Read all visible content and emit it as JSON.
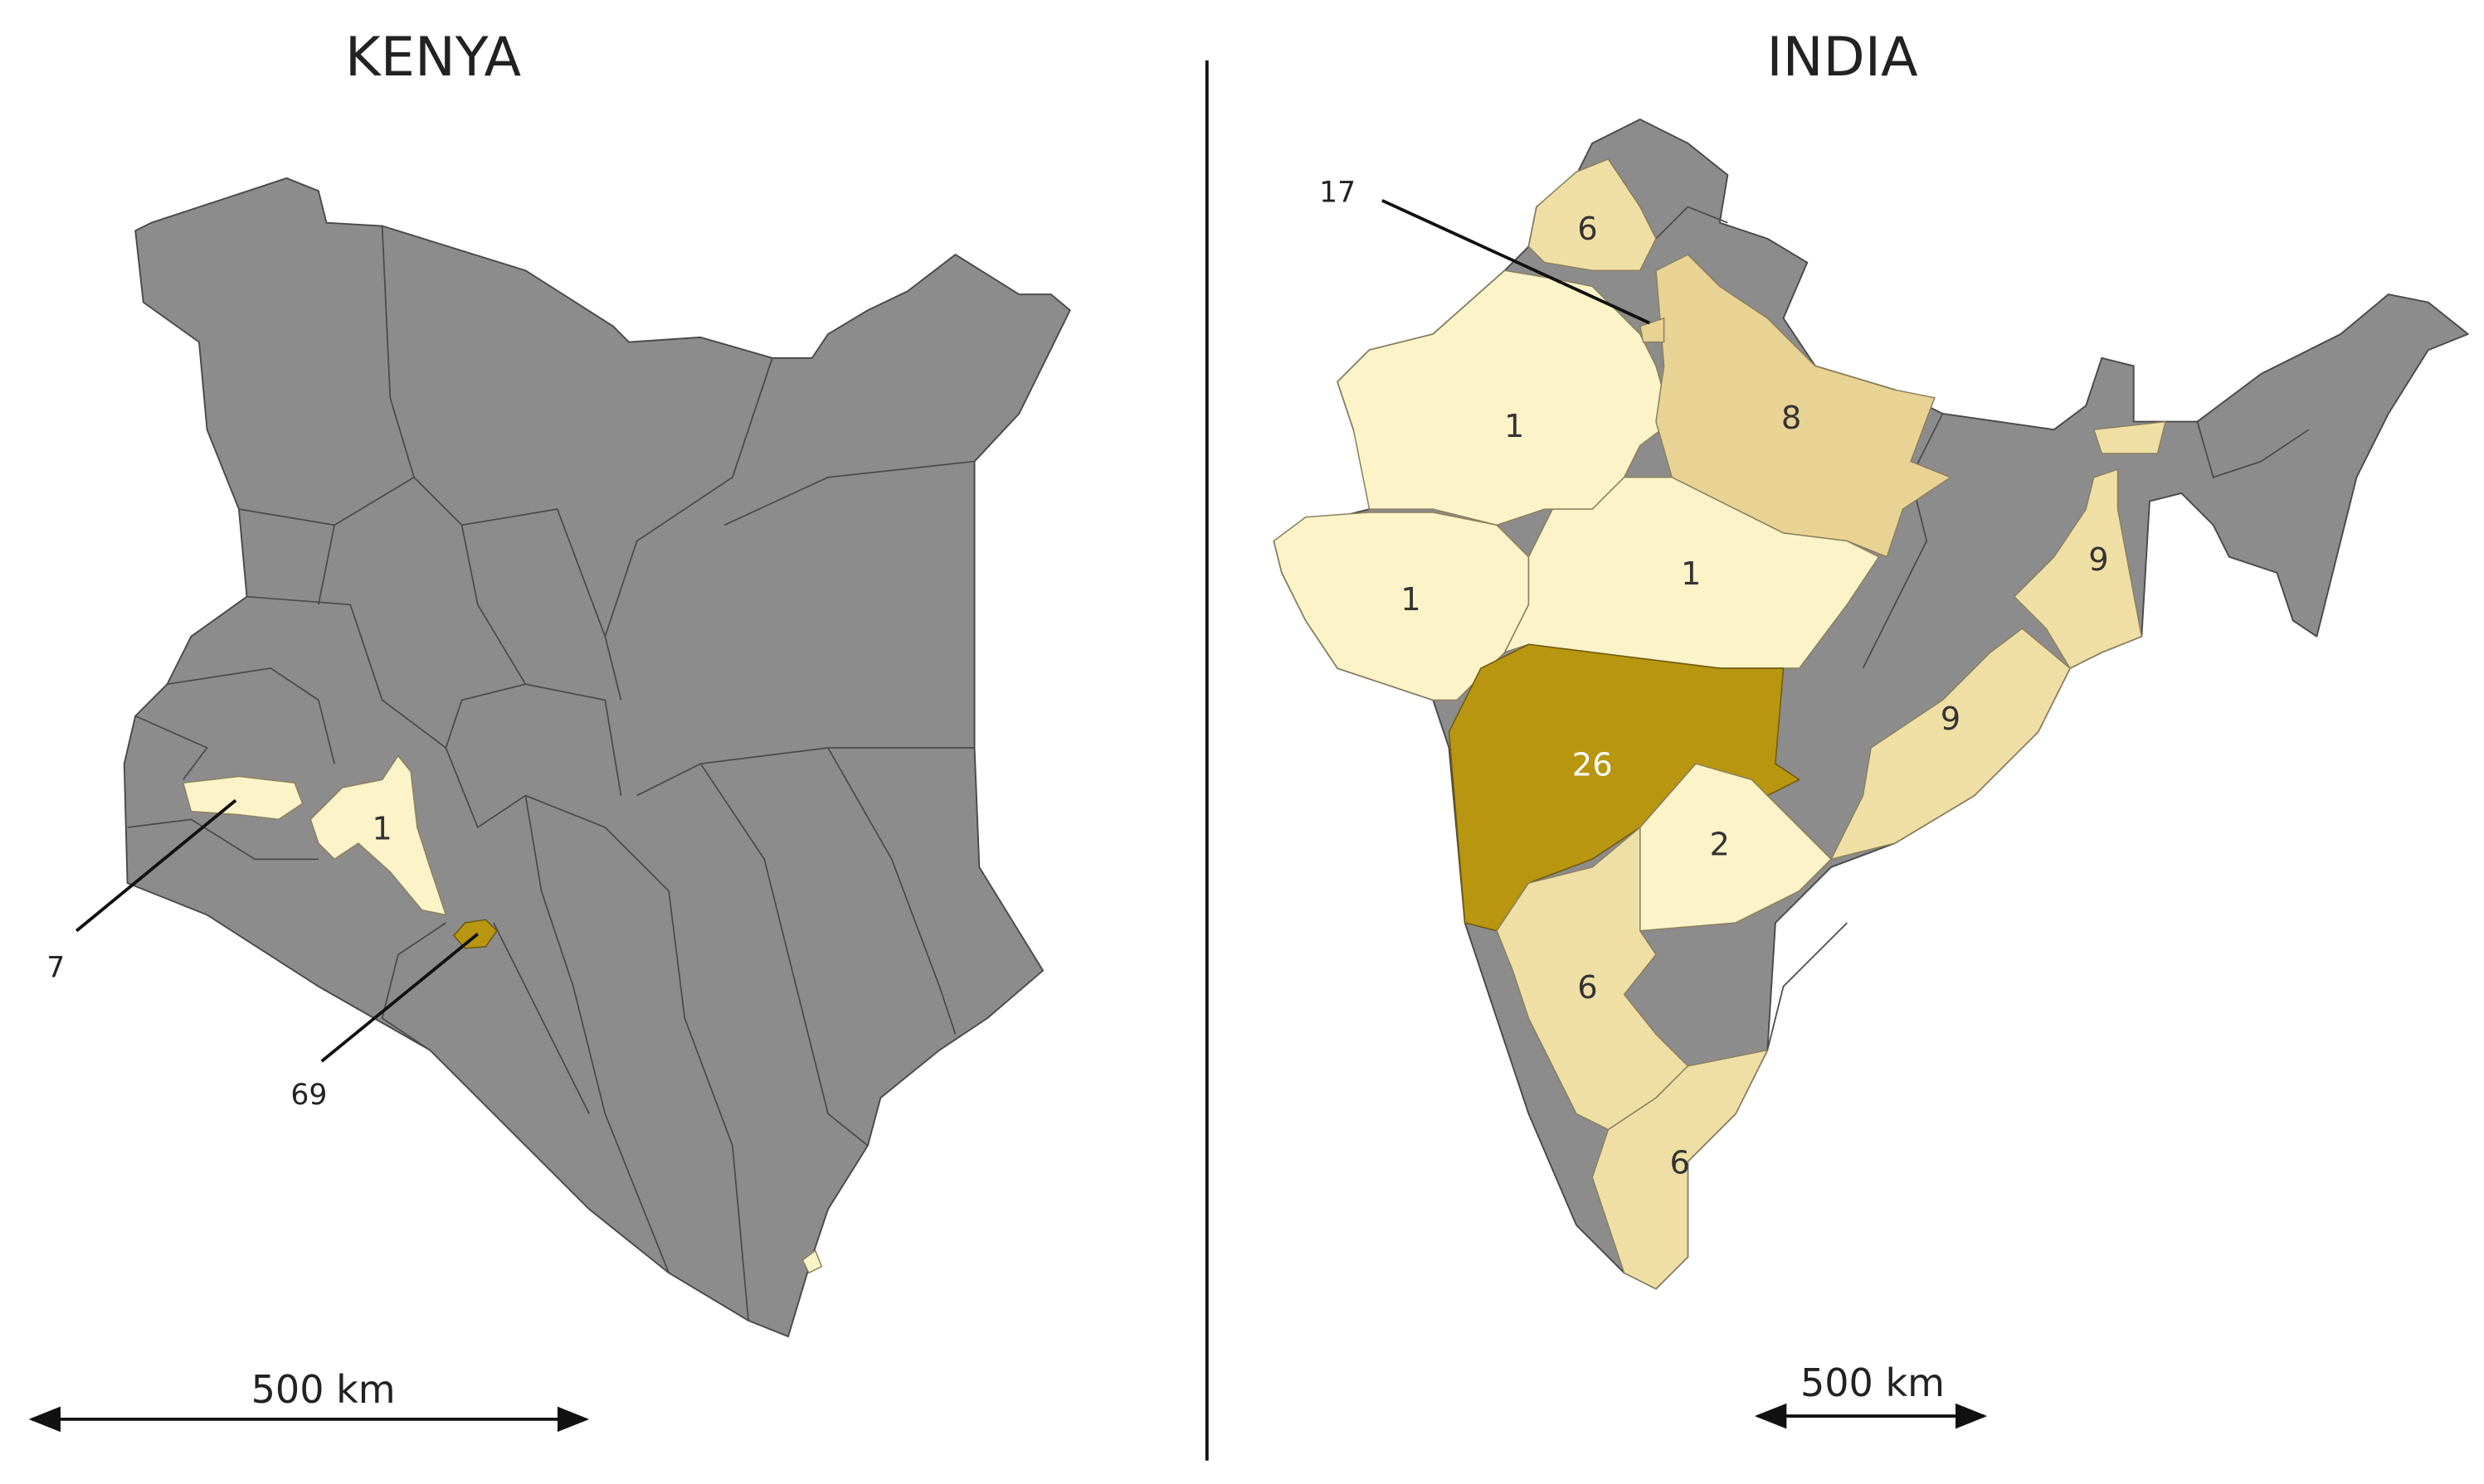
{
  "kenya": {
    "title": "KENYA",
    "region_labels": [
      "1"
    ],
    "callouts": [
      "7",
      "69"
    ],
    "scale": "500 km"
  },
  "india": {
    "title": "INDIA",
    "region_labels": [
      "6",
      "1",
      "8",
      "1",
      "1",
      "26",
      "2",
      "9",
      "9",
      "6",
      "6"
    ],
    "callouts": [
      "17"
    ],
    "scale": "500 km"
  }
}
